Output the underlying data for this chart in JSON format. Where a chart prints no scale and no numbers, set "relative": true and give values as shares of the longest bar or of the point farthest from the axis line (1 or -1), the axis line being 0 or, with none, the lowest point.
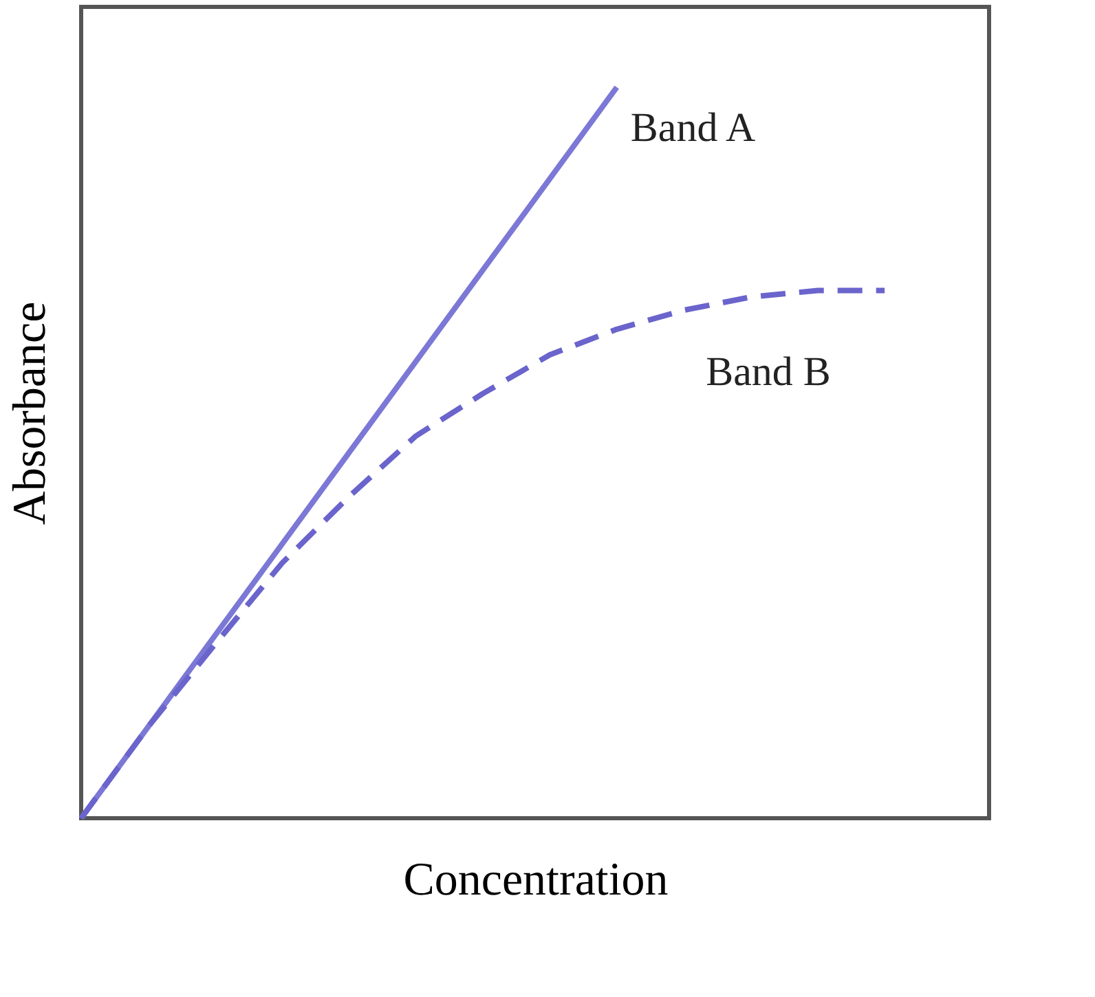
{
  "chart_data": {
    "type": "line",
    "relative": true,
    "xlabel": "Concentration",
    "ylabel": "Absorbance",
    "grid": false,
    "tick_labels": false,
    "marker": "none",
    "categories": [
      null,
      null,
      null,
      null,
      null,
      null,
      null,
      null,
      null,
      null,
      null,
      null,
      null
    ],
    "series": [
      {
        "name": "Band A",
        "color": "#7b78d6",
        "line_style": "solid",
        "values": [
          0,
          0.125,
          0.25,
          0.375,
          0.5,
          0.625,
          0.75,
          0.875,
          1,
          null,
          null,
          null,
          null
        ]
      },
      {
        "name": "Band B",
        "color": "#6a64cc",
        "line_style": "dashed",
        "values": [
          0,
          0.125,
          0.238,
          0.349,
          0.44,
          0.523,
          0.581,
          0.634,
          0.669,
          0.695,
          0.713,
          0.722,
          0.722
        ]
      }
    ]
  }
}
